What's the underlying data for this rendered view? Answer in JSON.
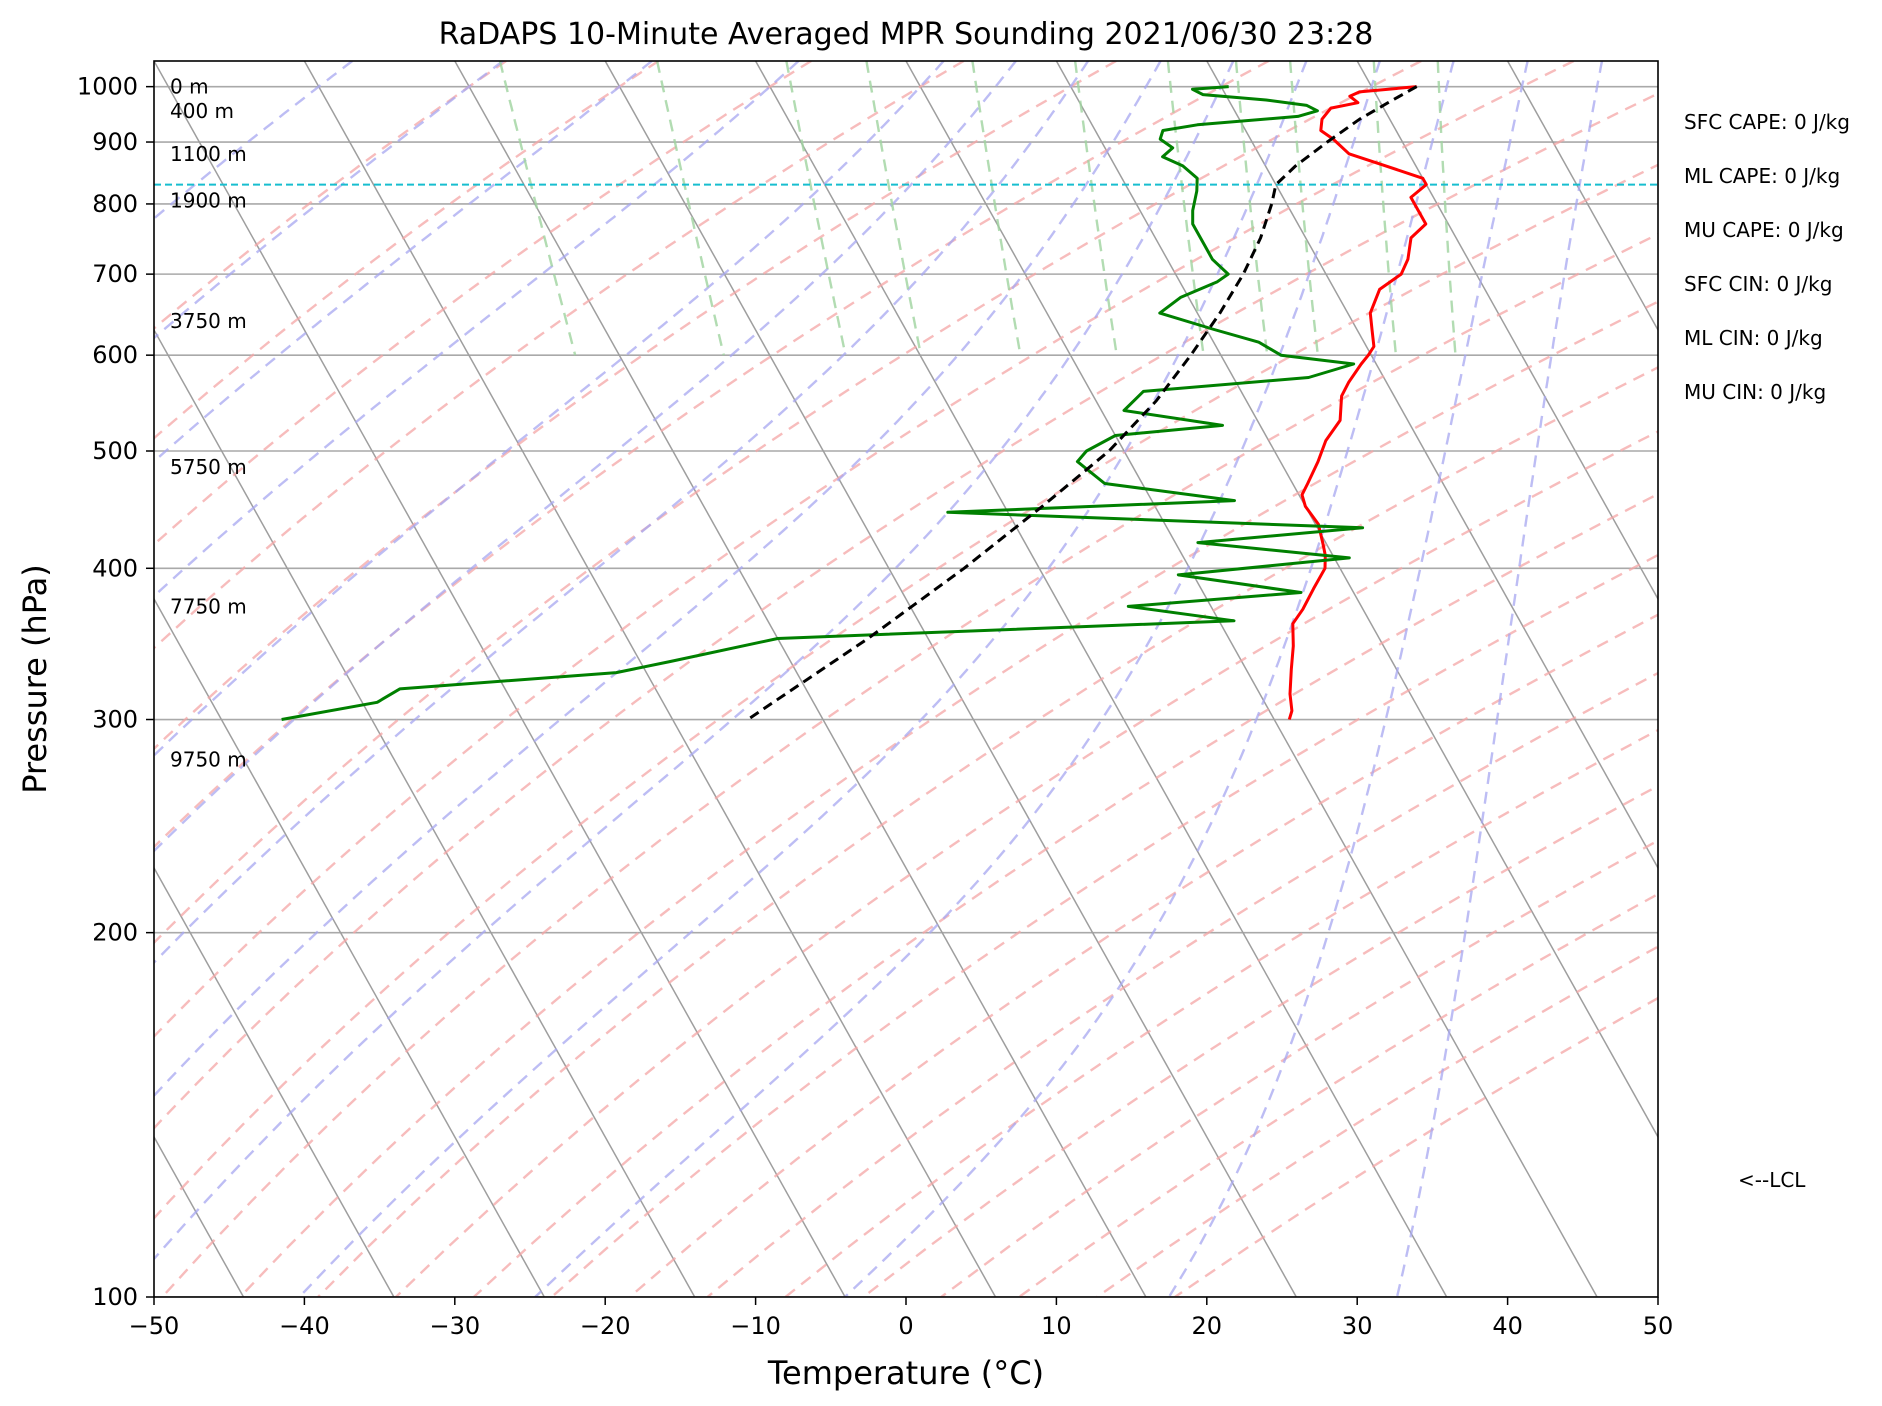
{
  "chart_data": {
    "type": "line",
    "title": "RaDAPS 10-Minute Averaged MPR Sounding 2021/06/30 23:28",
    "xlabel": "Temperature (°C)",
    "ylabel": "Pressure (hPa)",
    "xlim": [
      -50,
      50
    ],
    "ylim": [
      1050,
      100
    ],
    "y_scale": "log",
    "grid": true,
    "x_ticks": [
      "−50",
      "−40",
      "−30",
      "−20",
      "−10",
      "0",
      "10",
      "20",
      "30",
      "40",
      "50"
    ],
    "y_ticks": [
      "100",
      "200",
      "300",
      "400",
      "500",
      "600",
      "700",
      "800",
      "900",
      "1000"
    ],
    "height_labels": [
      {
        "text": "0 m",
        "p": 1000
      },
      {
        "text": "400 m",
        "p": 955
      },
      {
        "text": "1100 m",
        "p": 880
      },
      {
        "text": "1900 m",
        "p": 805
      },
      {
        "text": "3750 m",
        "p": 640
      },
      {
        "text": "5750 m",
        "p": 485
      },
      {
        "text": "7750 m",
        "p": 372
      },
      {
        "text": "9750 m",
        "p": 278
      }
    ],
    "indices": [
      "SFC CAPE: 0 J/kg",
      "ML CAPE: 0 J/kg",
      "MU CAPE: 0 J/kg",
      "SFC CIN: 0 J/kg",
      "ML CIN: 0 J/kg",
      "MU CIN: 0 J/kg"
    ],
    "lcl": {
      "pressure": 830,
      "label": "<--LCL"
    },
    "skew_T_per_decade": 45,
    "series": [
      {
        "key": "temperature",
        "color": "#ff0000",
        "points": [
          [
            1000,
            33.0
          ],
          [
            990,
            29.0
          ],
          [
            982,
            28.2
          ],
          [
            970,
            28.5
          ],
          [
            960,
            26.5
          ],
          [
            950,
            26.0
          ],
          [
            940,
            25.5
          ],
          [
            920,
            25.0
          ],
          [
            905,
            25.5
          ],
          [
            880,
            26.0
          ],
          [
            860,
            28.0
          ],
          [
            840,
            30.0
          ],
          [
            830,
            30.0
          ],
          [
            810,
            28.5
          ],
          [
            790,
            28.5
          ],
          [
            770,
            28.5
          ],
          [
            750,
            27.0
          ],
          [
            720,
            26.0
          ],
          [
            700,
            25.0
          ],
          [
            680,
            23.0
          ],
          [
            650,
            21.5
          ],
          [
            630,
            21.0
          ],
          [
            610,
            20.5
          ],
          [
            600,
            19.8
          ],
          [
            590,
            19.0
          ],
          [
            570,
            17.5
          ],
          [
            555,
            16.5
          ],
          [
            530,
            15.5
          ],
          [
            510,
            13.8
          ],
          [
            490,
            12.5
          ],
          [
            470,
            11.0
          ],
          [
            460,
            10.2
          ],
          [
            450,
            10.0
          ],
          [
            435,
            10.2
          ],
          [
            420,
            9.8
          ],
          [
            410,
            9.5
          ],
          [
            400,
            9.0
          ],
          [
            385,
            7.5
          ],
          [
            370,
            6.0
          ],
          [
            360,
            4.8
          ],
          [
            345,
            4.0
          ],
          [
            330,
            3.0
          ],
          [
            315,
            2.0
          ],
          [
            305,
            1.5
          ],
          [
            300,
            1.0
          ]
        ]
      },
      {
        "key": "dewpoint",
        "color": "#008000",
        "points": [
          [
            1000,
            20.5
          ],
          [
            995,
            18.0
          ],
          [
            985,
            18.5
          ],
          [
            975,
            22.5
          ],
          [
            965,
            25.0
          ],
          [
            955,
            25.5
          ],
          [
            945,
            24.0
          ],
          [
            930,
            17.0
          ],
          [
            920,
            14.5
          ],
          [
            905,
            14.0
          ],
          [
            890,
            14.5
          ],
          [
            875,
            13.5
          ],
          [
            860,
            14.5
          ],
          [
            840,
            15.0
          ],
          [
            820,
            14.5
          ],
          [
            790,
            13.5
          ],
          [
            770,
            13.0
          ],
          [
            740,
            13.0
          ],
          [
            720,
            13.0
          ],
          [
            700,
            13.5
          ],
          [
            690,
            12.5
          ],
          [
            670,
            9.5
          ],
          [
            650,
            7.5
          ],
          [
            630,
            10.5
          ],
          [
            615,
            13.0
          ],
          [
            600,
            14.0
          ],
          [
            590,
            18.5
          ],
          [
            575,
            15.0
          ],
          [
            560,
            3.5
          ],
          [
            540,
            1.5
          ],
          [
            525,
            7.5
          ],
          [
            515,
            0.0
          ],
          [
            500,
            -2.5
          ],
          [
            490,
            -3.5
          ],
          [
            470,
            -2.5
          ],
          [
            455,
            5.5
          ],
          [
            445,
            -14.0
          ],
          [
            432,
            13.0
          ],
          [
            420,
            1.5
          ],
          [
            408,
            11.0
          ],
          [
            395,
            -1.0
          ],
          [
            382,
            6.5
          ],
          [
            372,
            -5.5
          ],
          [
            362,
            1.0
          ],
          [
            350,
            -30.0
          ],
          [
            335,
            -38.0
          ],
          [
            328,
            -42.0
          ],
          [
            318,
            -57.0
          ],
          [
            310,
            -59.0
          ],
          [
            300,
            -66.0
          ]
        ]
      },
      {
        "key": "parcel",
        "color": "#000000",
        "dashed": true,
        "points": [
          [
            1000,
            33.0
          ],
          [
            970,
            30.5
          ],
          [
            940,
            28.0
          ],
          [
            900,
            25.0
          ],
          [
            860,
            22.0
          ],
          [
            830,
            20.0
          ],
          [
            800,
            19.0
          ],
          [
            750,
            17.0
          ],
          [
            700,
            14.5
          ],
          [
            650,
            11.5
          ],
          [
            600,
            8.0
          ],
          [
            550,
            4.0
          ],
          [
            500,
            -1.0
          ],
          [
            450,
            -7.5
          ],
          [
            400,
            -15.0
          ],
          [
            350,
            -24.0
          ],
          [
            300,
            -35.0
          ]
        ]
      }
    ]
  }
}
